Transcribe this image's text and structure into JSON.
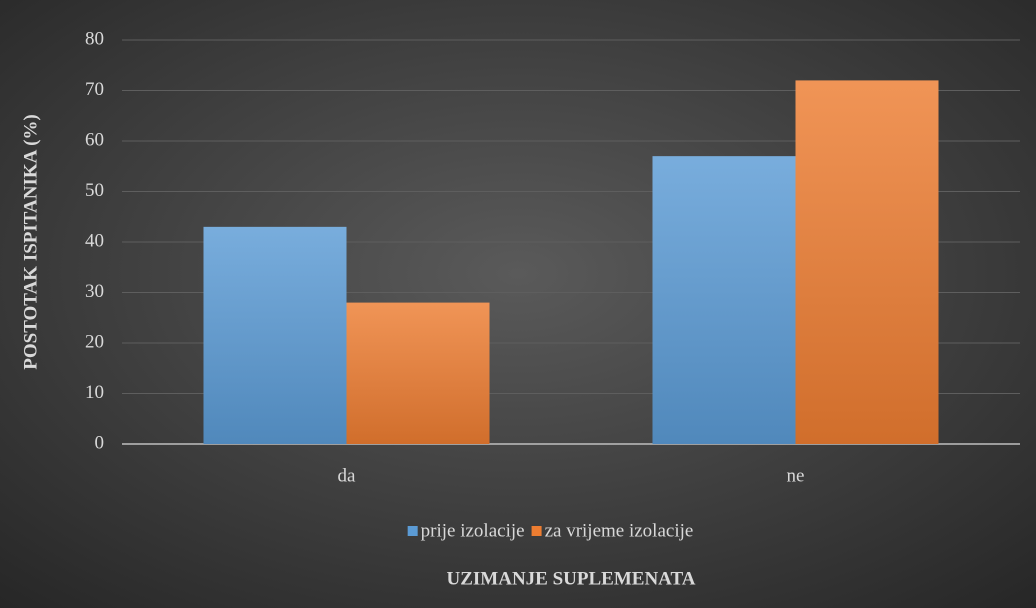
{
  "chart_data": {
    "type": "bar",
    "x_label": "UZIMANJE SUPLEMENATA",
    "y_label": "POSTOTAK ISPITANIKA (%)",
    "categories": [
      "da",
      "ne"
    ],
    "series": [
      {
        "name": "prije izolacije",
        "color": "#5b9bd5",
        "values": [
          43,
          57
        ]
      },
      {
        "name": "za vrijeme izolacije",
        "color": "#ed7d31",
        "values": [
          28,
          72
        ]
      }
    ],
    "ylim": [
      0,
      80
    ],
    "yticks": [
      0,
      10,
      20,
      30,
      40,
      50,
      60,
      70,
      80
    ],
    "grid": true,
    "legend": "bottom"
  }
}
